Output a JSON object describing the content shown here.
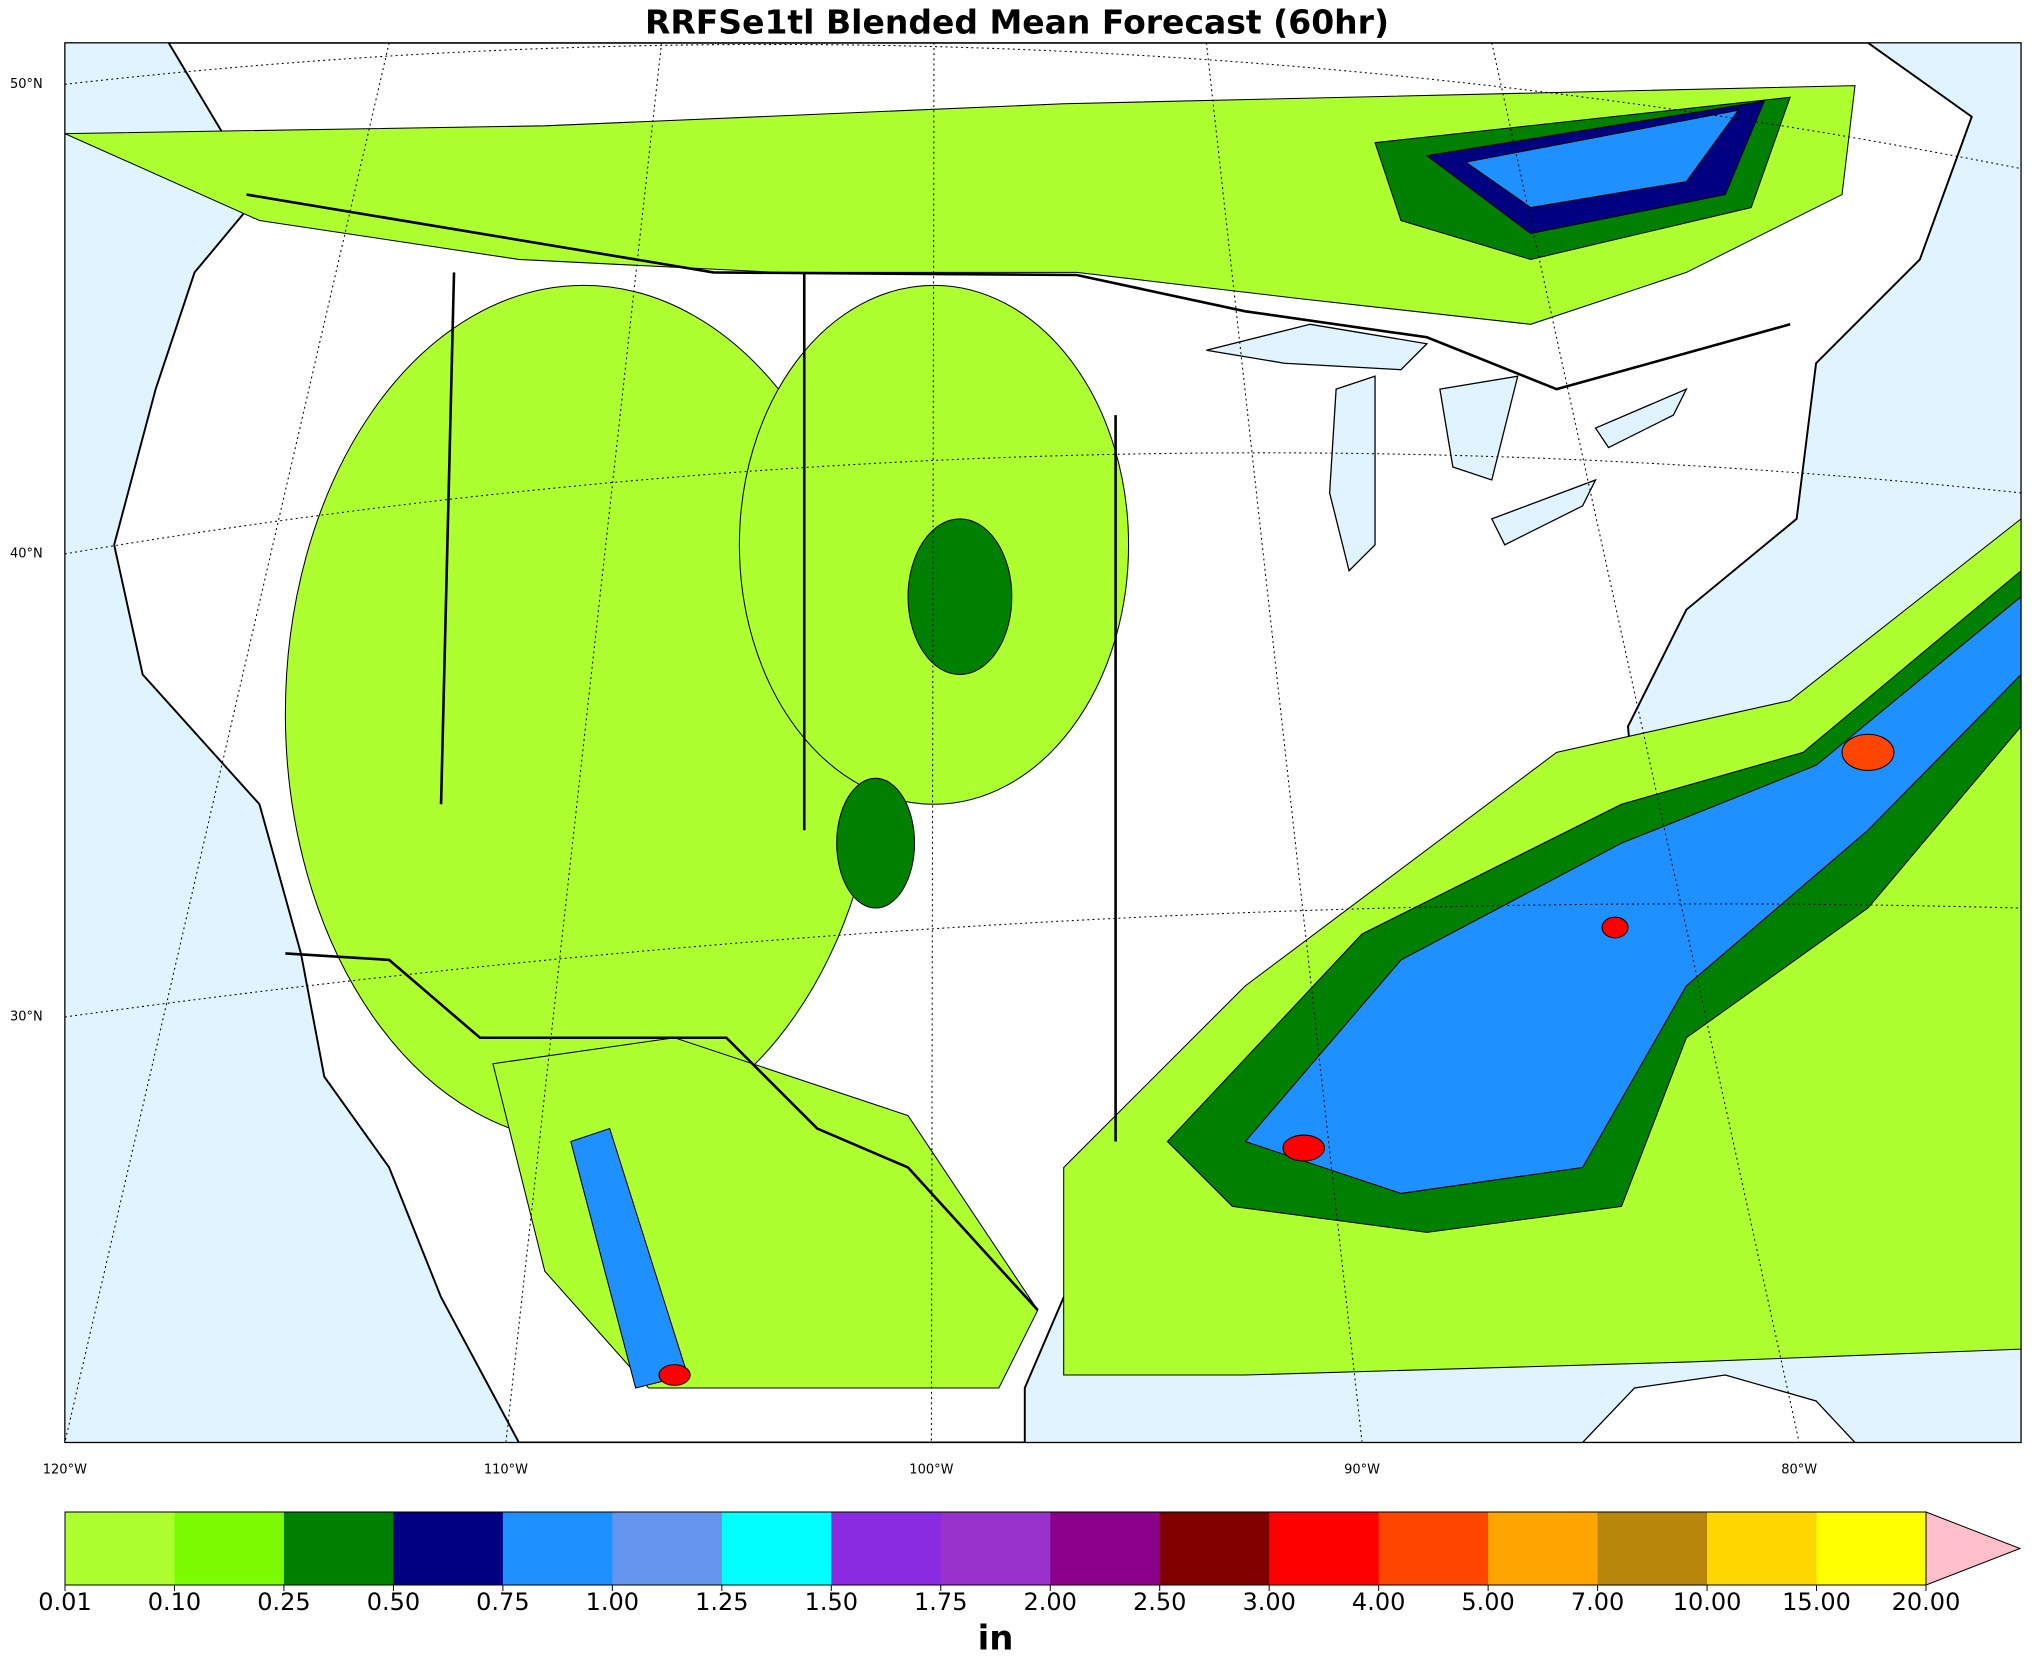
{
  "title": "RRFSe1tl Blended Mean Forecast (60hr)",
  "map": {
    "lat_labels": [
      "50°N",
      "40°N",
      "30°N"
    ],
    "lon_labels": [
      "120°W",
      "110°W",
      "100°W",
      "90°W",
      "80°W"
    ]
  },
  "colorbar": {
    "label": "in",
    "ticks": [
      0.01,
      {
        "value": 0.1,
        "label": "0.10"
      },
      0.25,
      {
        "value": 0.5,
        "label": "0.50"
      },
      0.75,
      {
        "value": 1,
        "label": "1.00"
      },
      1.25,
      {
        "value": 1.5,
        "label": "1.50"
      },
      1.75,
      {
        "value": 2,
        "label": "2.00"
      },
      {
        "value": 2.5,
        "label": "2.50"
      },
      {
        "value": 3,
        "label": "3.00"
      },
      {
        "value": 4,
        "label": "4.00"
      },
      {
        "value": 5,
        "label": "5.00"
      },
      {
        "value": 7,
        "label": "7.00"
      },
      {
        "value": 10,
        "label": "10.00"
      },
      {
        "value": 15,
        "label": "15.00"
      },
      {
        "value": 20,
        "label": "20.00"
      }
    ],
    "colors": [
      "#adff2f",
      "#7cfc00",
      "#008000",
      "#000080",
      "#1e90ff",
      "#6495ed",
      "#00ffff",
      "#8a2be2",
      "#9932cc",
      "#8b008b",
      "#800000",
      "#ff0000",
      "#ff4500",
      "#ffa500",
      "#b8860b",
      "#ffd700",
      "#ffff00"
    ],
    "extend_color": "#ffc0cb"
  }
}
